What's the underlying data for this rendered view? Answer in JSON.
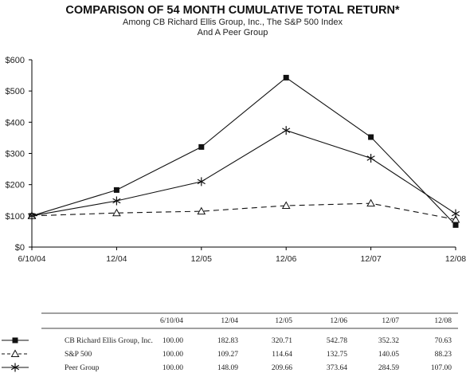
{
  "chart_data": {
    "type": "line",
    "title": "COMPARISON OF 54 MONTH CUMULATIVE TOTAL RETURN*",
    "subtitle_line1": "Among CB Richard Ellis Group, Inc., The S&P 500 Index",
    "subtitle_line2": "And A Peer Group",
    "categories": [
      "6/10/04",
      "12/04",
      "12/05",
      "12/06",
      "12/07",
      "12/08"
    ],
    "ylim": [
      0,
      600
    ],
    "y_ticks": [
      0,
      100,
      200,
      300,
      400,
      500,
      600
    ],
    "y_tick_labels": [
      "$0",
      "$100",
      "$200",
      "$300",
      "$400",
      "$500",
      "$600"
    ],
    "grid": false,
    "series": [
      {
        "name": "CB Richard Ellis Group, Inc.",
        "marker": "square",
        "line": "solid",
        "values": [
          100.0,
          182.83,
          320.71,
          542.78,
          352.32,
          70.63
        ],
        "labels": [
          "100.00",
          "182.83",
          "320.71",
          "542.78",
          "352.32",
          "70.63"
        ]
      },
      {
        "name": "S&P 500",
        "marker": "triangle",
        "line": "dashed",
        "values": [
          100.0,
          109.27,
          114.64,
          132.75,
          140.05,
          88.23
        ],
        "labels": [
          "100.00",
          "109.27",
          "114.64",
          "132.75",
          "140.05",
          "88.23"
        ]
      },
      {
        "name": "Peer Group",
        "marker": "asterisk",
        "line": "solid",
        "values": [
          100.0,
          148.09,
          209.66,
          373.64,
          284.59,
          107.0
        ],
        "labels": [
          "100.00",
          "148.09",
          "209.66",
          "373.64",
          "284.59",
          "107.00"
        ]
      }
    ]
  }
}
